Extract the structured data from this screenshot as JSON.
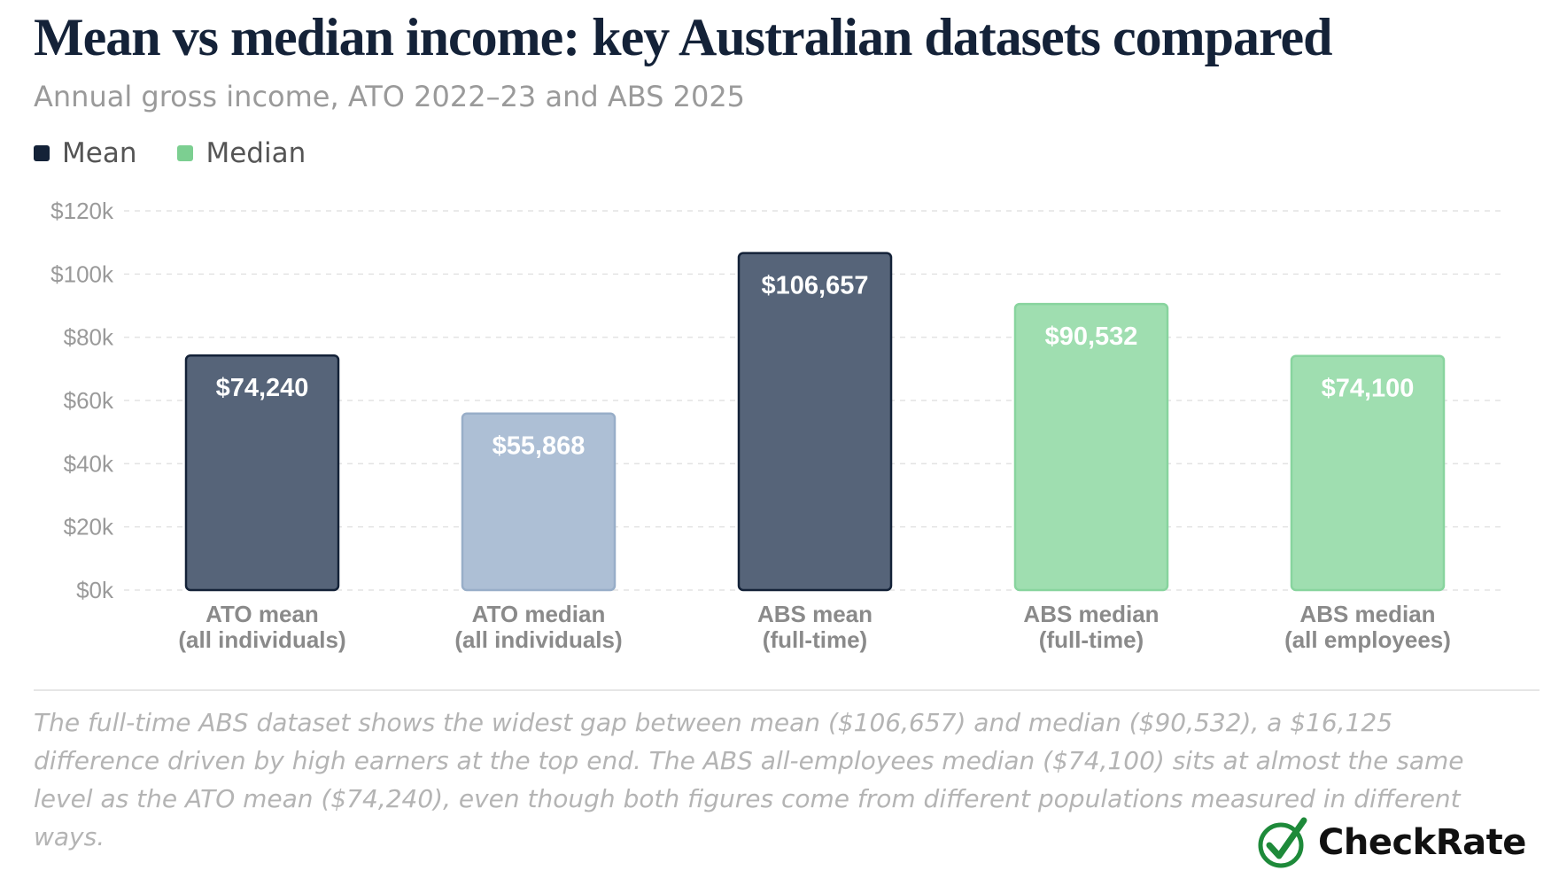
{
  "title": "Mean vs median income: key Australian datasets compared",
  "subtitle": "Annual gross income, ATO 2022–23 and ABS 2025",
  "legend": [
    {
      "label": "Mean",
      "color": "#142238"
    },
    {
      "label": "Median",
      "color": "#7ccf91"
    }
  ],
  "chart_data": {
    "type": "bar",
    "categories": [
      [
        "ATO mean",
        "(all individuals)"
      ],
      [
        "ATO median",
        "(all individuals)"
      ],
      [
        "ABS mean",
        "(full-time)"
      ],
      [
        "ABS median",
        "(full-time)"
      ],
      [
        "ABS median",
        "(all employees)"
      ]
    ],
    "values": [
      74240,
      55868,
      106657,
      90532,
      74100
    ],
    "value_labels": [
      "$74,240",
      "$55,868",
      "$106,657",
      "$90,532",
      "$74,100"
    ],
    "bar_styles": [
      {
        "fill": "#566479",
        "stroke": "#142238"
      },
      {
        "fill": "#adbfd5",
        "stroke": "#98aec8"
      },
      {
        "fill": "#566479",
        "stroke": "#142238"
      },
      {
        "fill": "#9fdeb0",
        "stroke": "#88d49e"
      },
      {
        "fill": "#9fdeb0",
        "stroke": "#88d49e"
      }
    ],
    "yticks": [
      0,
      20000,
      40000,
      60000,
      80000,
      100000,
      120000
    ],
    "ytick_labels": [
      "$0k",
      "$20k",
      "$40k",
      "$60k",
      "$80k",
      "$100k",
      "$120k"
    ],
    "ylim": [
      0,
      120000
    ],
    "grid": true,
    "legend_position": "top-left"
  },
  "note": "The full-time ABS dataset shows the widest gap between mean ($106,657) and median ($90,532), a $16,125 difference driven by high earners at the top end. The ABS all-employees median ($74,100) sits at almost the same level as the ATO mean ($74,240), even though both figures come from different populations measured in different ways.",
  "brand": {
    "name": "CheckRate",
    "icon": "check-circle-icon",
    "color": "#1e8a3a"
  }
}
